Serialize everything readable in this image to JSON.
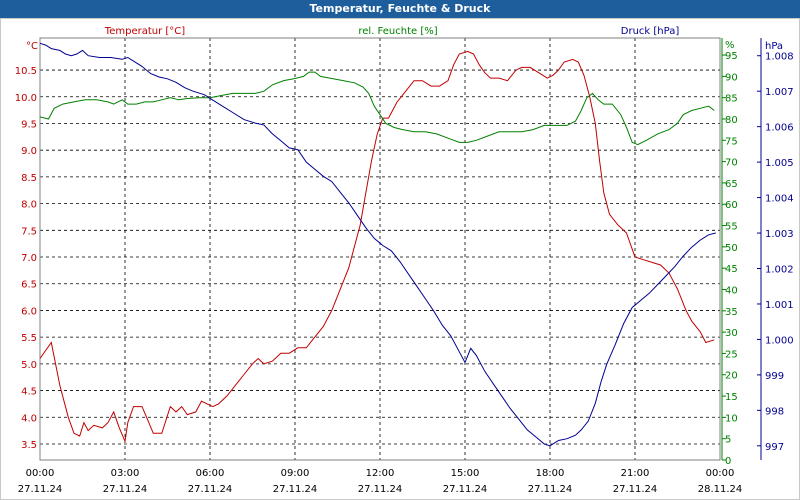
{
  "window": {
    "title": "Temperatur, Feuchte & Druck"
  },
  "chart_data": {
    "type": "line",
    "title": "Temperatur, Feuchte & Druck",
    "grid": true,
    "x_ticks": [
      {
        "time": "00:00",
        "date": "27.11.24",
        "h": 0
      },
      {
        "time": "03:00",
        "date": "27.11.24",
        "h": 3
      },
      {
        "time": "06:00",
        "date": "27.11.24",
        "h": 6
      },
      {
        "time": "09:00",
        "date": "27.11.24",
        "h": 9
      },
      {
        "time": "12:00",
        "date": "27.11.24",
        "h": 12
      },
      {
        "time": "15:00",
        "date": "27.11.24",
        "h": 15
      },
      {
        "time": "18:00",
        "date": "27.11.24",
        "h": 18
      },
      {
        "time": "21:00",
        "date": "27.11.24",
        "h": 21
      },
      {
        "time": "00:00",
        "date": "28.11.24",
        "h": 24
      }
    ],
    "x_range_h": [
      0,
      24
    ],
    "axes": {
      "temperature": {
        "unit": "°C",
        "range": [
          3.2,
          11.1
        ],
        "ticks": [
          "3.5",
          "4.0",
          "4.5",
          "5.0",
          "5.5",
          "6.0",
          "6.5",
          "7.0",
          "7.5",
          "8.0",
          "8.5",
          "9.0",
          "9.5",
          "10.0",
          "10.5"
        ],
        "color": "#c00000"
      },
      "humidity": {
        "unit": "%",
        "range": [
          0,
          99
        ],
        "ticks": [
          "0",
          "5",
          "10",
          "15",
          "20",
          "25",
          "30",
          "35",
          "40",
          "45",
          "50",
          "55",
          "60",
          "65",
          "70",
          "75",
          "80",
          "85",
          "90",
          "95"
        ],
        "color": "#008000"
      },
      "pressure": {
        "unit": "hPa",
        "range": [
          996.6,
          1008.5
        ],
        "ticks": [
          "997",
          "998",
          "999",
          "1.000",
          "1.001",
          "1.002",
          "1.003",
          "1.004",
          "1.005",
          "1.006",
          "1.007",
          "1.008"
        ],
        "color": "#000090"
      }
    },
    "series": [
      {
        "name": "Temperatur [°C]",
        "axis": "temperature",
        "color": "#c00000",
        "points": [
          [
            0,
            5.1
          ],
          [
            0.4,
            5.4
          ],
          [
            0.7,
            4.6
          ],
          [
            1.0,
            4.0
          ],
          [
            1.2,
            3.7
          ],
          [
            1.4,
            3.65
          ],
          [
            1.55,
            3.9
          ],
          [
            1.7,
            3.75
          ],
          [
            1.9,
            3.85
          ],
          [
            2.2,
            3.8
          ],
          [
            2.4,
            3.9
          ],
          [
            2.6,
            4.1
          ],
          [
            2.8,
            3.8
          ],
          [
            3.0,
            3.55
          ],
          [
            3.1,
            3.9
          ],
          [
            3.3,
            4.2
          ],
          [
            3.6,
            4.2
          ],
          [
            3.8,
            3.95
          ],
          [
            4.0,
            3.7
          ],
          [
            4.3,
            3.7
          ],
          [
            4.6,
            4.2
          ],
          [
            4.8,
            4.1
          ],
          [
            5.0,
            4.2
          ],
          [
            5.2,
            4.05
          ],
          [
            5.5,
            4.1
          ],
          [
            5.7,
            4.3
          ],
          [
            5.9,
            4.25
          ],
          [
            6.1,
            4.2
          ],
          [
            6.3,
            4.25
          ],
          [
            6.6,
            4.4
          ],
          [
            6.9,
            4.6
          ],
          [
            7.2,
            4.8
          ],
          [
            7.5,
            5.0
          ],
          [
            7.7,
            5.1
          ],
          [
            7.9,
            5.0
          ],
          [
            8.2,
            5.05
          ],
          [
            8.5,
            5.2
          ],
          [
            8.8,
            5.2
          ],
          [
            9.1,
            5.3
          ],
          [
            9.4,
            5.3
          ],
          [
            9.7,
            5.5
          ],
          [
            10.0,
            5.7
          ],
          [
            10.3,
            6.0
          ],
          [
            10.6,
            6.4
          ],
          [
            10.9,
            6.8
          ],
          [
            11.1,
            7.2
          ],
          [
            11.3,
            7.6
          ],
          [
            11.5,
            8.2
          ],
          [
            11.7,
            8.8
          ],
          [
            11.9,
            9.3
          ],
          [
            12.1,
            9.6
          ],
          [
            12.3,
            9.6
          ],
          [
            12.6,
            9.9
          ],
          [
            12.9,
            10.1
          ],
          [
            13.2,
            10.3
          ],
          [
            13.5,
            10.3
          ],
          [
            13.8,
            10.2
          ],
          [
            14.1,
            10.2
          ],
          [
            14.4,
            10.3
          ],
          [
            14.6,
            10.6
          ],
          [
            14.8,
            10.8
          ],
          [
            15.1,
            10.85
          ],
          [
            15.3,
            10.8
          ],
          [
            15.5,
            10.6
          ],
          [
            15.7,
            10.45
          ],
          [
            15.9,
            10.35
          ],
          [
            16.2,
            10.35
          ],
          [
            16.5,
            10.3
          ],
          [
            16.8,
            10.5
          ],
          [
            17.0,
            10.55
          ],
          [
            17.3,
            10.55
          ],
          [
            17.6,
            10.45
          ],
          [
            17.9,
            10.35
          ],
          [
            18.1,
            10.4
          ],
          [
            18.3,
            10.5
          ],
          [
            18.5,
            10.65
          ],
          [
            18.8,
            10.7
          ],
          [
            19.0,
            10.65
          ],
          [
            19.2,
            10.4
          ],
          [
            19.4,
            10.0
          ],
          [
            19.6,
            9.5
          ],
          [
            19.75,
            8.8
          ],
          [
            19.9,
            8.2
          ],
          [
            20.1,
            7.8
          ],
          [
            20.4,
            7.6
          ],
          [
            20.7,
            7.45
          ],
          [
            21.0,
            7.0
          ],
          [
            21.3,
            6.95
          ],
          [
            21.6,
            6.9
          ],
          [
            21.9,
            6.85
          ],
          [
            22.2,
            6.7
          ],
          [
            22.5,
            6.4
          ],
          [
            22.8,
            6.0
          ],
          [
            23.0,
            5.8
          ],
          [
            23.3,
            5.6
          ],
          [
            23.5,
            5.4
          ],
          [
            23.8,
            5.45
          ]
        ]
      },
      {
        "name": "rel. Feuchte [%]",
        "axis": "humidity",
        "color": "#008000",
        "points": [
          [
            0,
            80.5
          ],
          [
            0.3,
            80.0
          ],
          [
            0.5,
            82.5
          ],
          [
            0.8,
            83.5
          ],
          [
            1.2,
            84.0
          ],
          [
            1.6,
            84.5
          ],
          [
            2.0,
            84.5
          ],
          [
            2.4,
            84.0
          ],
          [
            2.6,
            83.5
          ],
          [
            2.9,
            84.5
          ],
          [
            3.1,
            83.5
          ],
          [
            3.4,
            83.5
          ],
          [
            3.7,
            84.0
          ],
          [
            4.0,
            84.0
          ],
          [
            4.3,
            84.5
          ],
          [
            4.6,
            85.0
          ],
          [
            4.9,
            84.5
          ],
          [
            5.2,
            84.8
          ],
          [
            5.6,
            85.0
          ],
          [
            6.0,
            85.0
          ],
          [
            6.4,
            85.5
          ],
          [
            6.8,
            86.0
          ],
          [
            7.2,
            86.0
          ],
          [
            7.6,
            86.0
          ],
          [
            7.9,
            86.5
          ],
          [
            8.2,
            88.0
          ],
          [
            8.6,
            89.0
          ],
          [
            9.0,
            89.5
          ],
          [
            9.3,
            90.0
          ],
          [
            9.5,
            91.0
          ],
          [
            9.7,
            91.0
          ],
          [
            9.9,
            90.0
          ],
          [
            10.3,
            89.5
          ],
          [
            10.7,
            89.0
          ],
          [
            11.1,
            88.5
          ],
          [
            11.4,
            87.5
          ],
          [
            11.6,
            86.0
          ],
          [
            11.8,
            83.0
          ],
          [
            12.0,
            81.0
          ],
          [
            12.2,
            79.0
          ],
          [
            12.5,
            78.0
          ],
          [
            12.8,
            77.5
          ],
          [
            13.2,
            77.0
          ],
          [
            13.6,
            77.0
          ],
          [
            14.0,
            76.5
          ],
          [
            14.4,
            75.5
          ],
          [
            14.8,
            74.5
          ],
          [
            15.1,
            74.5
          ],
          [
            15.4,
            75.0
          ],
          [
            15.8,
            76.0
          ],
          [
            16.2,
            77.0
          ],
          [
            16.6,
            77.0
          ],
          [
            17.0,
            77.0
          ],
          [
            17.4,
            77.5
          ],
          [
            17.8,
            78.5
          ],
          [
            18.2,
            78.5
          ],
          [
            18.6,
            78.5
          ],
          [
            18.9,
            79.5
          ],
          [
            19.1,
            82.0
          ],
          [
            19.3,
            85.0
          ],
          [
            19.5,
            86.0
          ],
          [
            19.7,
            84.5
          ],
          [
            19.9,
            83.5
          ],
          [
            20.2,
            83.5
          ],
          [
            20.5,
            81.0
          ],
          [
            20.7,
            78.0
          ],
          [
            20.9,
            74.5
          ],
          [
            21.1,
            74.0
          ],
          [
            21.4,
            75.0
          ],
          [
            21.8,
            76.5
          ],
          [
            22.2,
            77.5
          ],
          [
            22.5,
            79.0
          ],
          [
            22.7,
            81.0
          ],
          [
            23.0,
            82.0
          ],
          [
            23.3,
            82.5
          ],
          [
            23.6,
            83.0
          ],
          [
            23.8,
            82.0
          ]
        ]
      },
      {
        "name": "Druck [hPa]",
        "axis": "pressure",
        "color": "#000090",
        "points": [
          [
            0,
            1008.35
          ],
          [
            0.2,
            1008.3
          ],
          [
            0.4,
            1008.2
          ],
          [
            0.7,
            1008.15
          ],
          [
            0.9,
            1008.05
          ],
          [
            1.1,
            1008.0
          ],
          [
            1.3,
            1008.05
          ],
          [
            1.5,
            1008.15
          ],
          [
            1.7,
            1008.0
          ],
          [
            2.1,
            1007.95
          ],
          [
            2.5,
            1007.95
          ],
          [
            2.9,
            1007.9
          ],
          [
            3.1,
            1007.95
          ],
          [
            3.3,
            1007.85
          ],
          [
            3.6,
            1007.7
          ],
          [
            3.9,
            1007.5
          ],
          [
            4.2,
            1007.4
          ],
          [
            4.5,
            1007.35
          ],
          [
            4.8,
            1007.25
          ],
          [
            5.1,
            1007.1
          ],
          [
            5.4,
            1007.0
          ],
          [
            5.8,
            1006.9
          ],
          [
            6.1,
            1006.75
          ],
          [
            6.4,
            1006.6
          ],
          [
            6.8,
            1006.4
          ],
          [
            7.2,
            1006.2
          ],
          [
            7.6,
            1006.1
          ],
          [
            7.9,
            1006.05
          ],
          [
            8.2,
            1005.8
          ],
          [
            8.5,
            1005.6
          ],
          [
            8.8,
            1005.4
          ],
          [
            9.1,
            1005.35
          ],
          [
            9.4,
            1005.0
          ],
          [
            9.7,
            1004.8
          ],
          [
            10.0,
            1004.6
          ],
          [
            10.3,
            1004.45
          ],
          [
            10.6,
            1004.15
          ],
          [
            10.9,
            1003.85
          ],
          [
            11.2,
            1003.5
          ],
          [
            11.5,
            1003.15
          ],
          [
            11.8,
            1002.85
          ],
          [
            12.1,
            1002.65
          ],
          [
            12.4,
            1002.5
          ],
          [
            12.7,
            1002.2
          ],
          [
            13.0,
            1001.85
          ],
          [
            13.3,
            1001.5
          ],
          [
            13.6,
            1001.15
          ],
          [
            13.9,
            1000.8
          ],
          [
            14.2,
            1000.4
          ],
          [
            14.5,
            1000.1
          ],
          [
            14.8,
            999.65
          ],
          [
            15.0,
            999.35
          ],
          [
            15.2,
            999.75
          ],
          [
            15.4,
            999.55
          ],
          [
            15.7,
            999.1
          ],
          [
            16.0,
            998.75
          ],
          [
            16.3,
            998.4
          ],
          [
            16.6,
            998.05
          ],
          [
            16.9,
            997.75
          ],
          [
            17.2,
            997.45
          ],
          [
            17.5,
            997.25
          ],
          [
            17.8,
            997.05
          ],
          [
            18.0,
            997.0
          ],
          [
            18.3,
            997.15
          ],
          [
            18.6,
            997.2
          ],
          [
            18.9,
            997.3
          ],
          [
            19.1,
            997.45
          ],
          [
            19.35,
            997.7
          ],
          [
            19.6,
            998.2
          ],
          [
            19.8,
            998.8
          ],
          [
            20.0,
            999.3
          ],
          [
            20.3,
            999.85
          ],
          [
            20.6,
            1000.45
          ],
          [
            20.9,
            1000.9
          ],
          [
            21.2,
            1001.1
          ],
          [
            21.5,
            1001.3
          ],
          [
            21.8,
            1001.55
          ],
          [
            22.1,
            1001.8
          ],
          [
            22.4,
            1002.05
          ],
          [
            22.7,
            1002.35
          ],
          [
            23.0,
            1002.6
          ],
          [
            23.3,
            1002.8
          ],
          [
            23.6,
            1002.95
          ],
          [
            23.85,
            1003.0
          ]
        ]
      }
    ]
  }
}
